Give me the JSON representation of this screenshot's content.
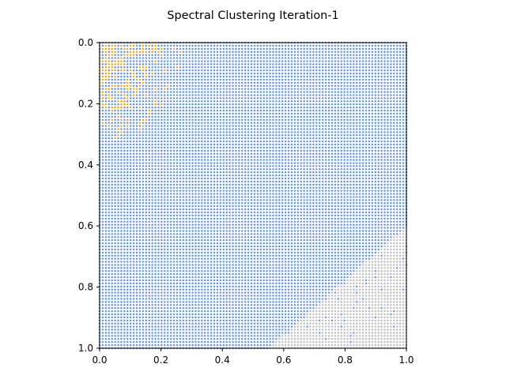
{
  "chart_data": {
    "type": "scatter",
    "title": "Spectral Clustering Iteration-1",
    "xlabel": "",
    "ylabel": "",
    "xlim": [
      0.0,
      1.0
    ],
    "ylim": [
      1.0,
      0.0
    ],
    "y_inverted": true,
    "x_ticks": [
      "0.0",
      "0.2",
      "0.4",
      "0.6",
      "0.8",
      "1.0"
    ],
    "y_ticks": [
      "0.0",
      "0.2",
      "0.4",
      "0.6",
      "0.8",
      "1.0"
    ],
    "grid": false,
    "legend": "none",
    "grid_resolution": 100,
    "colors": {
      "cluster_0": "#6495ed",
      "cluster_1": "#ffa500",
      "cluster_2": "#c0c0c0"
    },
    "series": [
      {
        "cluster": "cluster_1",
        "approx_region": "upper-left corner, x 0.0-0.25, y 0.0-0.32, scattered points"
      },
      {
        "cluster": "cluster_2",
        "approx_region": "lower-right triangle, from (0.55, 1.0) to (1.0, 0.6)"
      },
      {
        "cluster": "cluster_0",
        "approx_region": "all remaining grid points"
      }
    ]
  }
}
